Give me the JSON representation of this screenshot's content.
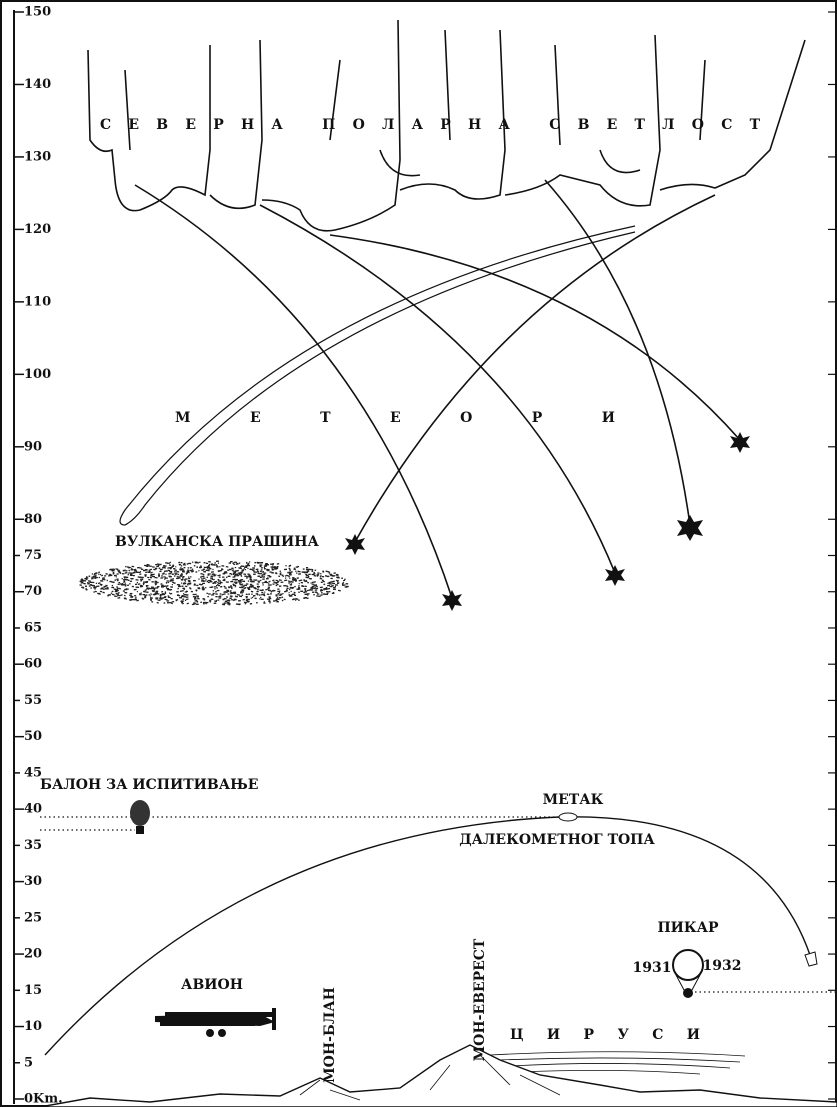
{
  "scale": {
    "ticks": [
      150,
      140,
      130,
      120,
      110,
      100,
      90,
      80,
      75,
      70,
      65,
      60,
      55,
      50,
      45,
      40,
      35,
      30,
      25,
      20,
      15,
      10,
      5,
      {
        "value": 0,
        "label": "0Km."
      }
    ]
  },
  "labels": {
    "aurora": "СЕВЕРНА ПОЛАРНА СВЕТЛОСТ",
    "meteors": "МЕТЕОРИ",
    "volcanic_dust": "ВУЛКАНСКА ПРАШИНА",
    "balloon": "БАЛОН ЗА ИСПИТИВАЊЕ",
    "bullet": "МЕТАК",
    "cannon": "ДАЛЕКОМЕТНОГ ТОПА",
    "piccard": "ПИКАР",
    "year_1": "1931",
    "year_2": "1932",
    "airplane": "АВИОН",
    "mont_blanc": "МОН-БЛАН",
    "everest": "МОН-ЕВЕРЕСТ",
    "cirrus": "ЦИРУСИ"
  }
}
